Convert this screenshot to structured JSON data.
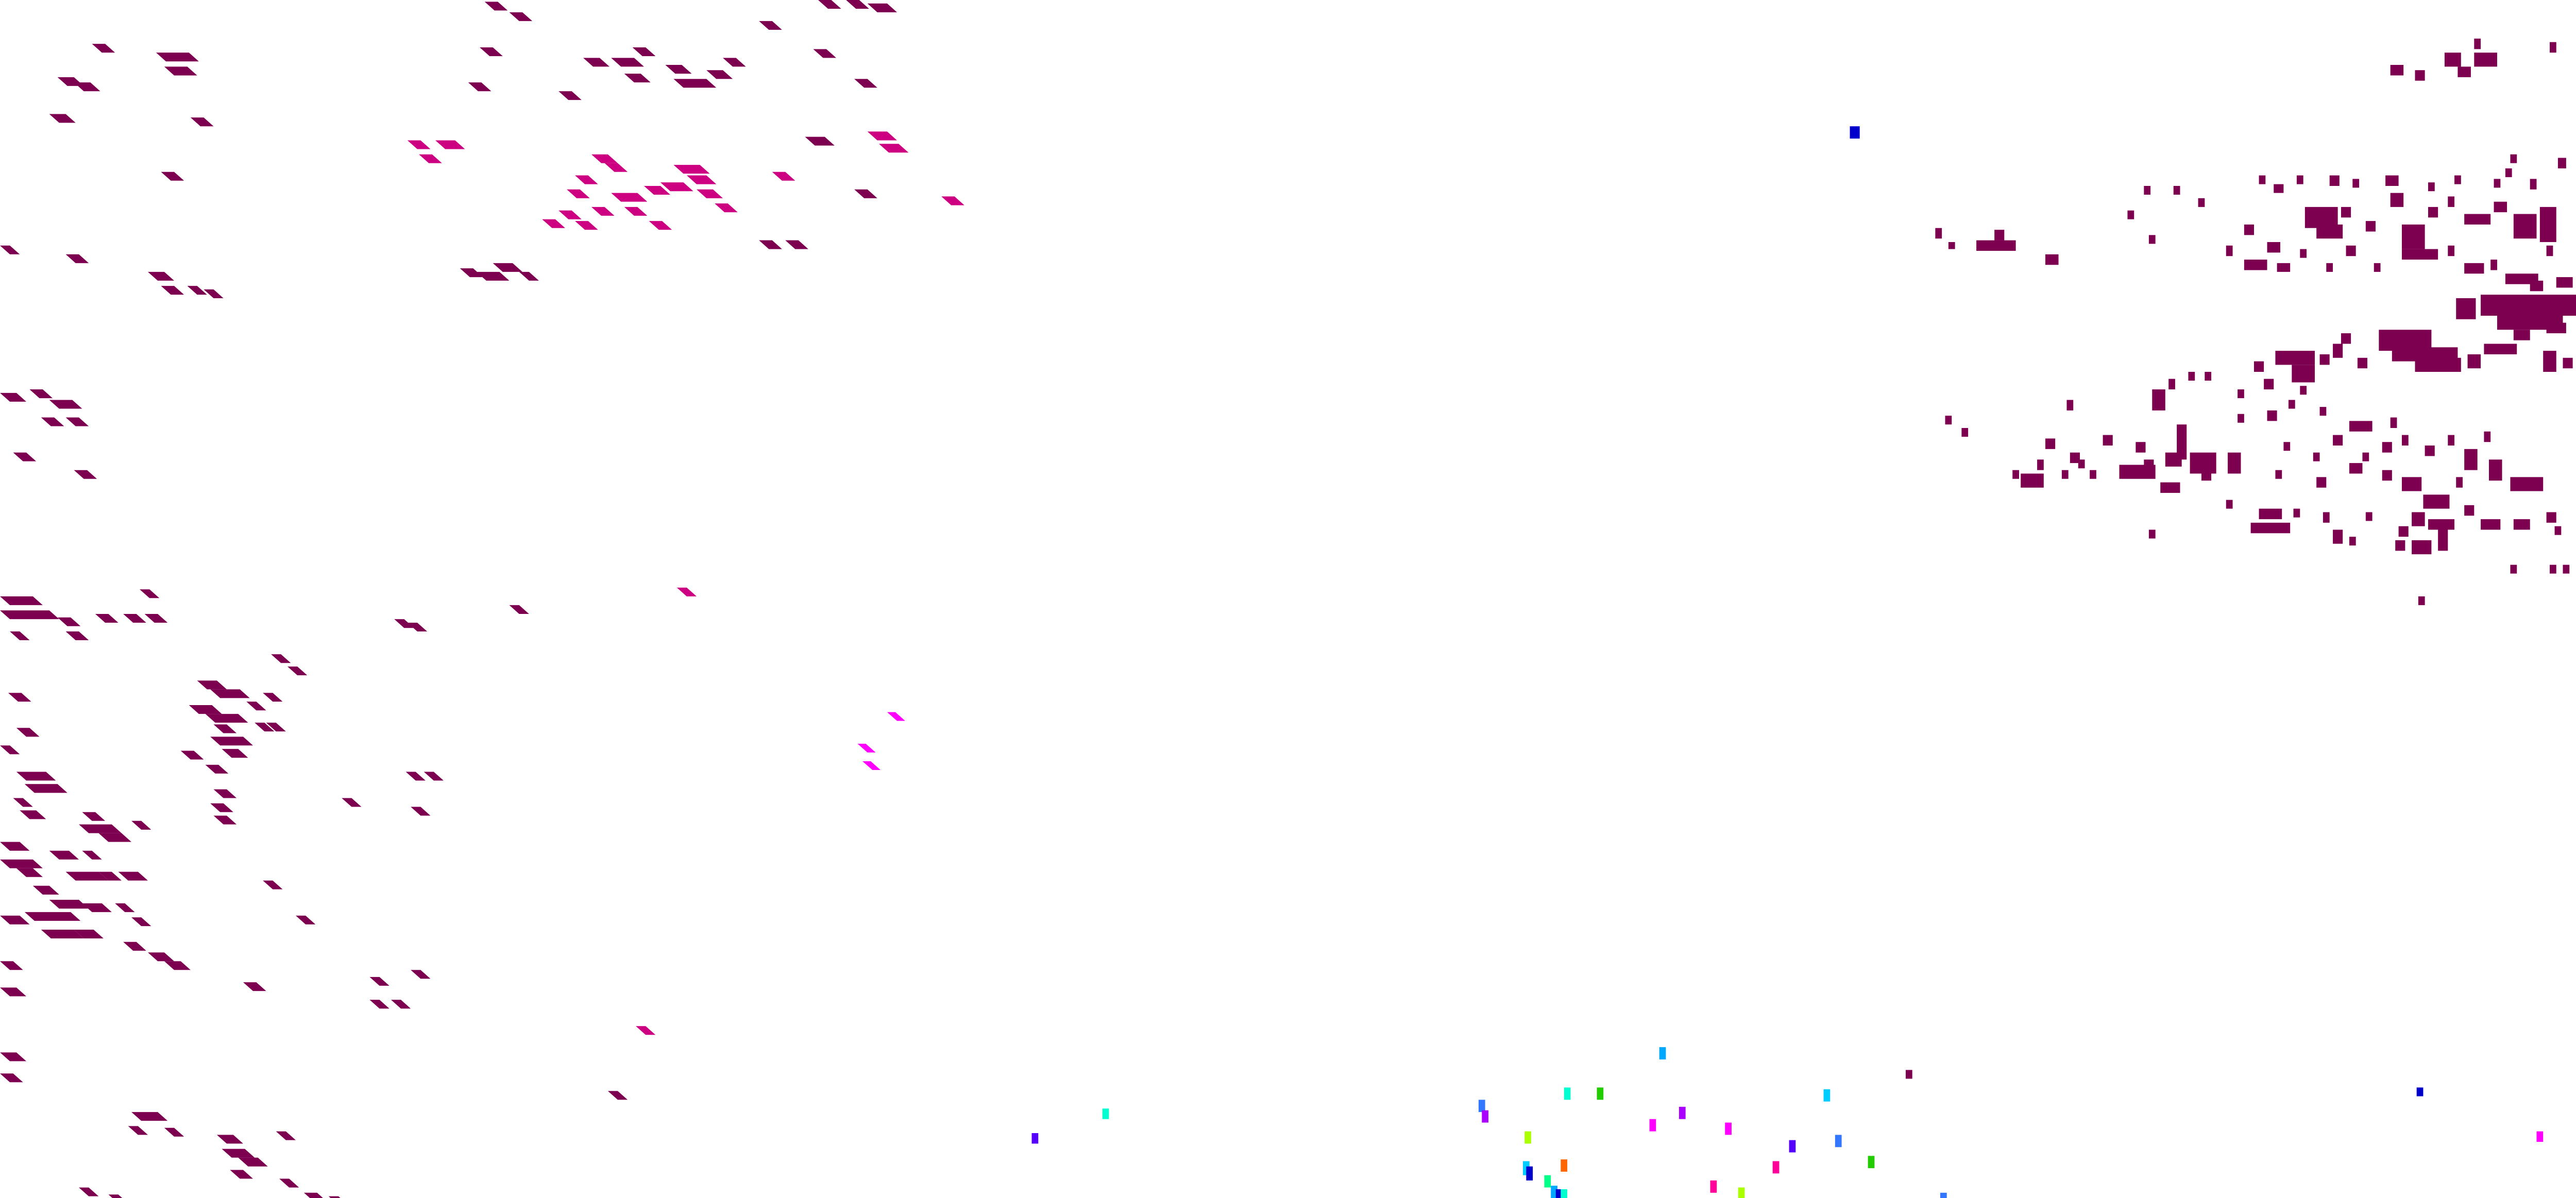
{
  "colors": {
    "background": "#ffffff",
    "dark_magenta": "#7d0050",
    "pink": "#cc0080",
    "magenta": "#ff00ff",
    "palette": [
      "#00a8ff",
      "#00ffd0",
      "#22cc00",
      "#3377ff",
      "#aa00ff",
      "#ff00ff",
      "#aaff00",
      "#5500ff",
      "#00ccff",
      "#ff6600",
      "#0000cc",
      "#00ff88",
      "#ff0099",
      "#7d0050"
    ]
  }
}
